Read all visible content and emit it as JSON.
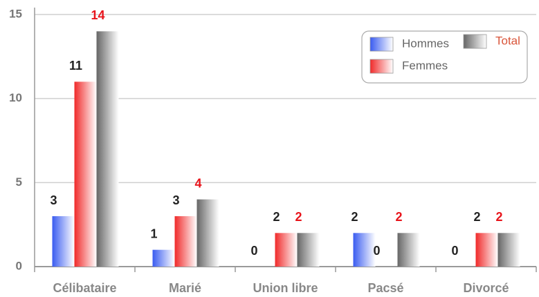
{
  "chart_data": {
    "type": "bar",
    "categories": [
      "Célibataire",
      "Marié",
      "Union libre",
      "Pacsé",
      "Divorcé"
    ],
    "series": [
      {
        "name": "Hommes",
        "color": "#3a5cf0",
        "label_color": "#222222",
        "values": [
          3,
          1,
          0,
          2,
          0
        ]
      },
      {
        "name": "Femmes",
        "color": "#f02a2a",
        "label_color": "#222222",
        "values": [
          11,
          3,
          2,
          0,
          2
        ]
      },
      {
        "name": "Total",
        "color": "#666666",
        "label_color": "#e8141b",
        "values": [
          14,
          4,
          2,
          2,
          2
        ]
      }
    ],
    "ylim": [
      0,
      15
    ],
    "yticks": [
      0,
      5,
      10,
      15
    ],
    "grid": true,
    "legend": "upper right"
  }
}
